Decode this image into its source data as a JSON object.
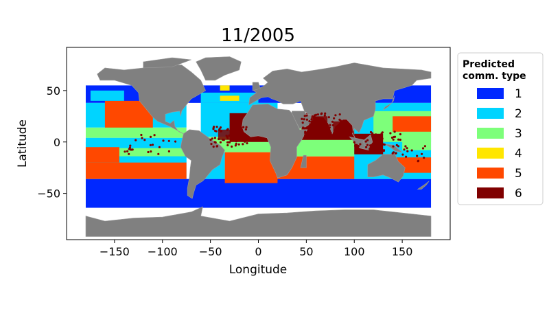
{
  "chart_data": {
    "type": "map",
    "title": "11/2005",
    "xlabel": "Longitude",
    "ylabel": "Latitude",
    "xlim": [
      -200,
      200
    ],
    "ylim": [
      -95,
      92
    ],
    "xticks": [
      -150,
      -100,
      -50,
      0,
      50,
      100,
      150
    ],
    "xtick_labels": [
      "−150",
      "−100",
      "−50",
      "0",
      "50",
      "100",
      "150"
    ],
    "yticks": [
      -50,
      0,
      50
    ],
    "ytick_labels": [
      "−50",
      "0",
      "50"
    ],
    "grid": false,
    "land_color": "#808080",
    "legend": {
      "title_line1": "Predicted",
      "title_line2": "comm. type",
      "placement": "right",
      "entries": [
        {
          "label": "1",
          "color": "#0028ff"
        },
        {
          "label": "2",
          "color": "#00d4ff"
        },
        {
          "label": "3",
          "color": "#7dff7a"
        },
        {
          "label": "4",
          "color": "#ffe600"
        },
        {
          "label": "5",
          "color": "#ff4800"
        },
        {
          "label": "6",
          "color": "#800000"
        }
      ]
    }
  }
}
